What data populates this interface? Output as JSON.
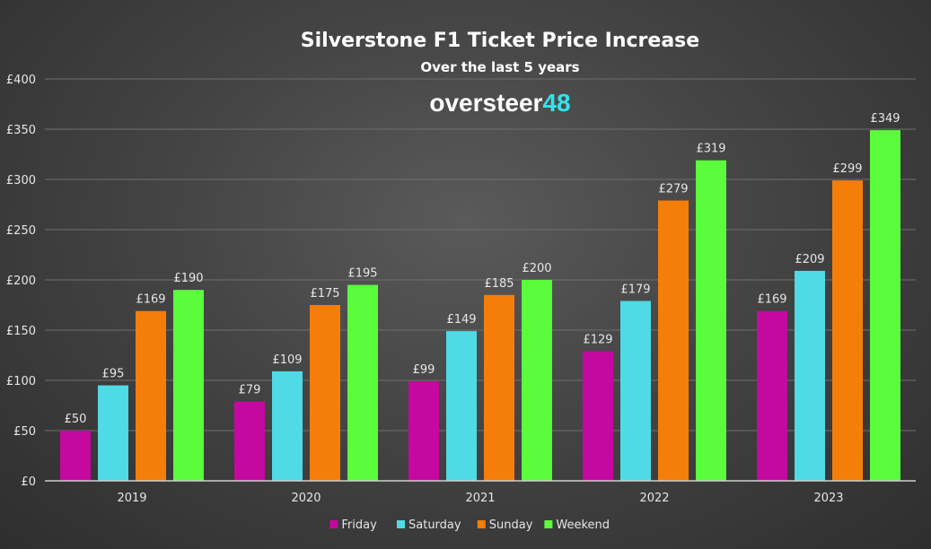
{
  "chart_data": {
    "type": "bar",
    "title": "Silverstone F1 Ticket Price Increase",
    "subtitle": "Over the last 5 years",
    "brand": {
      "text": "oversteer",
      "accent": "48"
    },
    "categories": [
      "2019",
      "2020",
      "2021",
      "2022",
      "2023"
    ],
    "series": [
      {
        "name": "Friday",
        "color": "#c5089f",
        "values": [
          50,
          79,
          99,
          129,
          169
        ]
      },
      {
        "name": "Saturday",
        "color": "#4fdbe6",
        "values": [
          95,
          109,
          149,
          179,
          209
        ]
      },
      {
        "name": "Sunday",
        "color": "#f57e0a",
        "values": [
          169,
          175,
          185,
          279,
          299
        ]
      },
      {
        "name": "Weekend",
        "color": "#5afc3c",
        "values": [
          190,
          195,
          200,
          319,
          349
        ]
      }
    ],
    "ylim": [
      0,
      400
    ],
    "yticks": [
      "£0",
      "£50",
      "£100",
      "£150",
      "£200",
      "£250",
      "£300",
      "£350",
      "£400"
    ],
    "data_label_prefix": "£",
    "grid": true,
    "legend_position": "bottom"
  }
}
